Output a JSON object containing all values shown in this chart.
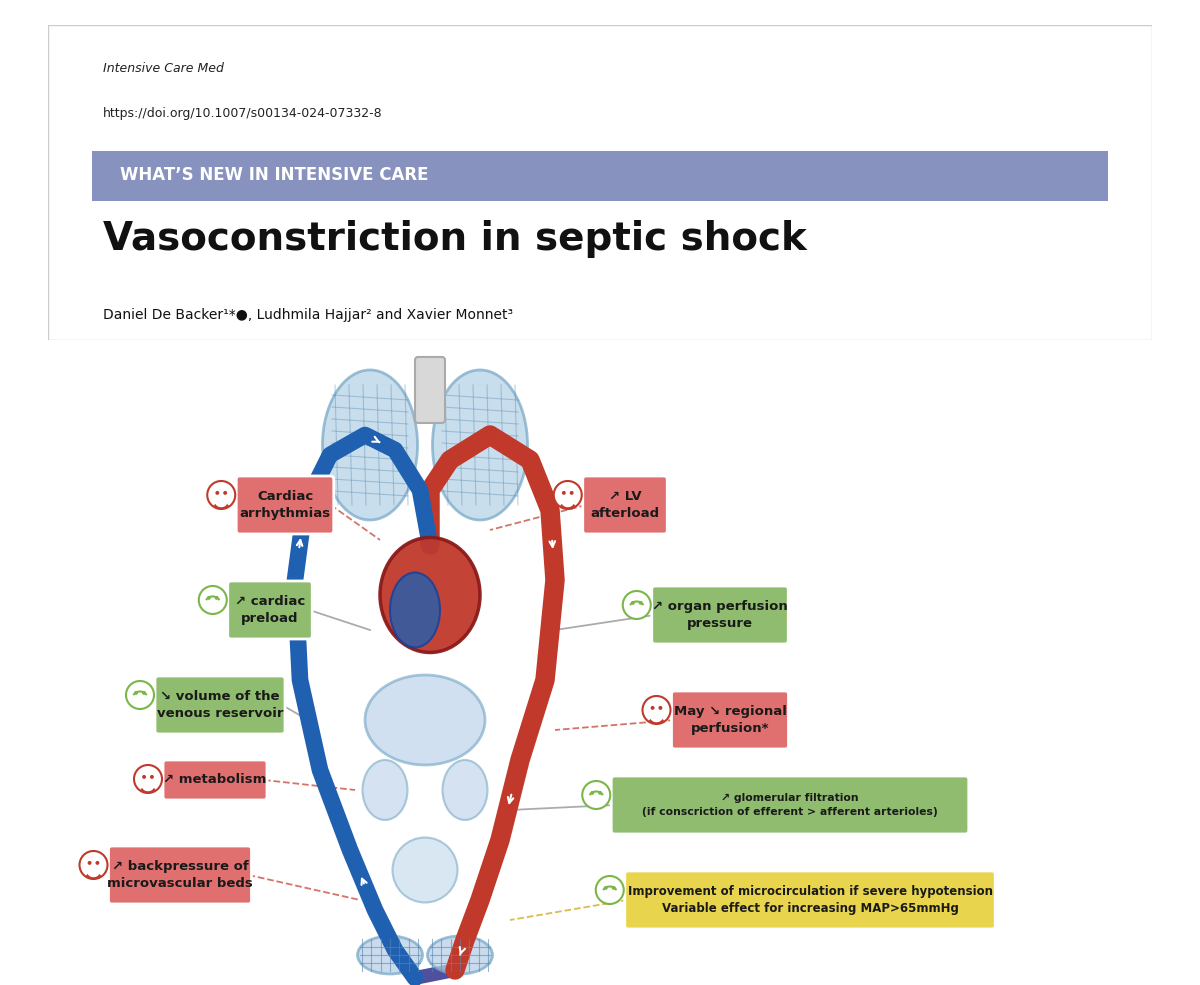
{
  "bg_color": "#ffffff",
  "paper_bg": "#ffffff",
  "journal_text": "Intensive Care Med",
  "doi_text": "https://doi.org/10.1007/s00134-024-07332-8",
  "banner_color": "#8892bf",
  "banner_text": "WHAT’S NEW IN INTENSIVE CARE",
  "banner_text_color": "#ffffff",
  "title_text": "Vasoconstriction in septic shock",
  "authors_text": "Daniel De Backer¹*●, Ludhmila Hajjar² and Xavier Monnet³",
  "red_box_color": "#e07070",
  "green_box_color": "#8fbc6e",
  "yellow_box_color": "#e8d44d",
  "red_face_color": "#c0392b",
  "green_face_color": "#7ab648",
  "diagram_bg": "#f0f0f0"
}
